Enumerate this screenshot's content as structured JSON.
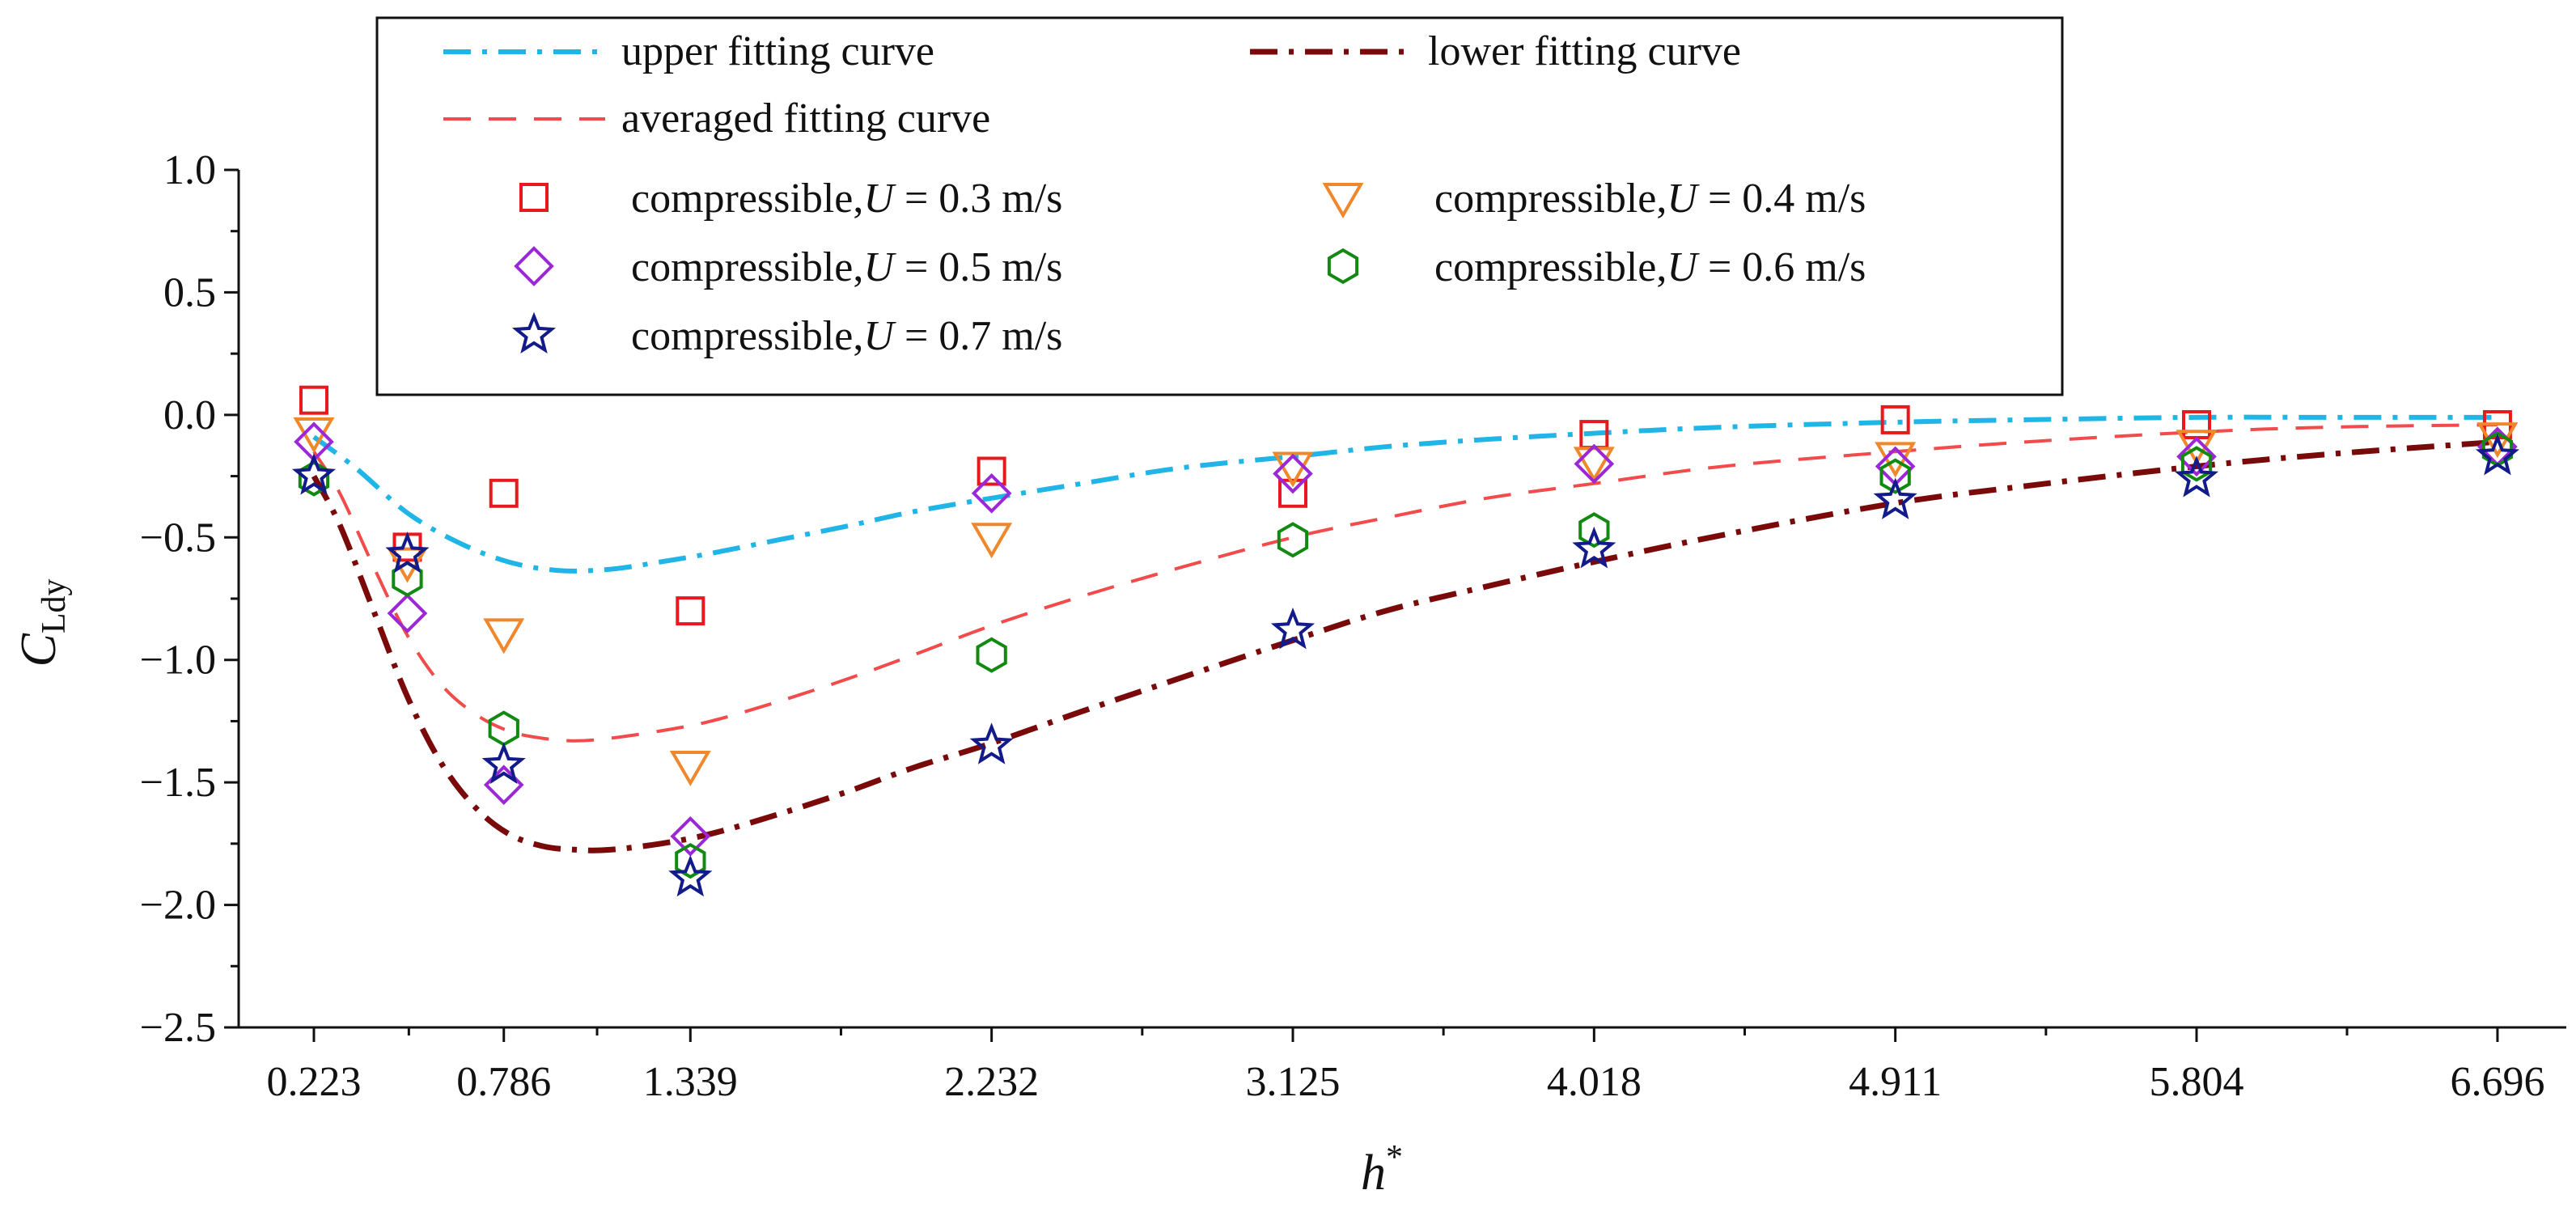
{
  "chart_data": {
    "type": "scatter",
    "title": "",
    "xlabel": "h",
    "xlabel_sup": "*",
    "ylabel": "C",
    "ylabel_sub": "Ldy",
    "xlim": [
      0,
      6.9
    ],
    "ylim": [
      -2.5,
      1.0
    ],
    "xticks": [
      0.223,
      0.786,
      1.339,
      2.232,
      3.125,
      4.018,
      4.911,
      5.804,
      6.696
    ],
    "xtick_labels": [
      "0.223",
      "0.786",
      "1.339",
      "2.232",
      "3.125",
      "4.018",
      "4.911",
      "5.804",
      "6.696"
    ],
    "yticks": [
      1.0,
      0.5,
      0.0,
      -0.5,
      -1.0,
      -1.5,
      -2.0,
      -2.5
    ],
    "ytick_labels": [
      "1.0",
      "0.5",
      "0.0",
      "−0.5",
      "−1.0",
      "−1.5",
      "−2.0",
      "−2.5"
    ],
    "grid": false,
    "legend_position": "top-center",
    "curves": [
      {
        "name": "upper fitting curve",
        "style": "dash-dot",
        "color": "#1fb5e6",
        "x": [
          0.223,
          0.35,
          0.5,
          0.65,
          0.8,
          0.95,
          1.1,
          1.25,
          1.4,
          1.6,
          1.8,
          2.0,
          2.232,
          2.5,
          2.8,
          3.125,
          3.4,
          3.7,
          4.018,
          4.4,
          4.911,
          5.3,
          5.804,
          6.2,
          6.696
        ],
        "y": [
          -0.09,
          -0.22,
          -0.4,
          -0.52,
          -0.6,
          -0.635,
          -0.63,
          -0.6,
          -0.565,
          -0.51,
          -0.455,
          -0.395,
          -0.34,
          -0.28,
          -0.215,
          -0.17,
          -0.13,
          -0.1,
          -0.075,
          -0.05,
          -0.03,
          -0.02,
          -0.01,
          -0.01,
          -0.01
        ]
      },
      {
        "name": "lower fitting curve",
        "style": "dash-dot",
        "color": "#7a0a0a",
        "x": [
          0.223,
          0.3,
          0.4,
          0.5,
          0.6,
          0.7,
          0.8,
          0.9,
          1.0,
          1.1,
          1.25,
          1.4,
          1.6,
          1.8,
          2.0,
          2.232,
          2.5,
          2.8,
          3.125,
          3.4,
          3.7,
          4.018,
          4.4,
          4.911,
          5.3,
          5.804,
          6.2,
          6.696
        ],
        "y": [
          -0.25,
          -0.45,
          -0.8,
          -1.15,
          -1.42,
          -1.6,
          -1.71,
          -1.76,
          -1.775,
          -1.775,
          -1.75,
          -1.71,
          -1.63,
          -1.54,
          -1.44,
          -1.34,
          -1.21,
          -1.07,
          -0.92,
          -0.8,
          -0.7,
          -0.6,
          -0.49,
          -0.36,
          -0.29,
          -0.21,
          -0.16,
          -0.11
        ]
      },
      {
        "name": "averaged fitting curve",
        "style": "dash",
        "color": "#f24b4b",
        "x": [
          0.223,
          0.3,
          0.4,
          0.5,
          0.6,
          0.7,
          0.8,
          0.9,
          1.0,
          1.1,
          1.25,
          1.4,
          1.6,
          1.8,
          2.0,
          2.232,
          2.5,
          2.8,
          3.125,
          3.4,
          3.7,
          4.018,
          4.4,
          4.911,
          5.3,
          5.804,
          6.2,
          6.696
        ],
        "y": [
          -0.15,
          -0.32,
          -0.62,
          -0.9,
          -1.1,
          -1.22,
          -1.29,
          -1.32,
          -1.33,
          -1.32,
          -1.29,
          -1.25,
          -1.17,
          -1.08,
          -0.98,
          -0.86,
          -0.74,
          -0.62,
          -0.5,
          -0.42,
          -0.34,
          -0.28,
          -0.21,
          -0.15,
          -0.11,
          -0.07,
          -0.05,
          -0.04
        ]
      }
    ],
    "series": [
      {
        "name": "compressible,U = 0.3 m/s",
        "label_prefix": "compressible,",
        "label_var": "U",
        "label_suffix": " = 0.3 m/s",
        "marker": "square",
        "color": "#e8191e",
        "x": [
          0.223,
          0.5,
          0.786,
          1.339,
          2.232,
          3.125,
          4.018,
          4.911,
          5.804,
          6.696
        ],
        "y": [
          0.06,
          -0.54,
          -0.32,
          -0.8,
          -0.23,
          -0.32,
          -0.08,
          -0.02,
          -0.04,
          -0.04
        ]
      },
      {
        "name": "compressible,U = 0.4 m/s",
        "label_prefix": "compressible,",
        "label_var": "U",
        "label_suffix": " = 0.4 m/s",
        "marker": "triangle-down",
        "color": "#f0872a",
        "x": [
          0.223,
          0.5,
          0.786,
          1.339,
          2.232,
          3.125,
          4.018,
          4.911,
          5.804,
          6.696
        ],
        "y": [
          -0.07,
          -0.6,
          -0.89,
          -1.43,
          -0.5,
          -0.21,
          -0.19,
          -0.17,
          -0.12,
          -0.09
        ]
      },
      {
        "name": "compressible,U = 0.5 m/s",
        "label_prefix": "compressible,",
        "label_var": "U",
        "label_suffix": " = 0.5 m/s",
        "marker": "diamond",
        "color": "#9b27d6",
        "x": [
          0.223,
          0.5,
          0.786,
          1.339,
          2.232,
          3.125,
          4.018,
          4.911,
          5.804,
          6.696
        ],
        "y": [
          -0.11,
          -0.81,
          -1.51,
          -1.72,
          -0.32,
          -0.24,
          -0.2,
          -0.21,
          -0.17,
          -0.13
        ]
      },
      {
        "name": "compressible,U = 0.6 m/s",
        "label_prefix": "compressible,",
        "label_var": "U",
        "label_suffix": " = 0.6 m/s",
        "marker": "hexagon",
        "color": "#128a12",
        "x": [
          0.223,
          0.5,
          0.786,
          1.339,
          2.232,
          3.125,
          4.018,
          4.911,
          5.804,
          6.696
        ],
        "y": [
          -0.26,
          -0.67,
          -1.28,
          -1.82,
          -0.98,
          -0.51,
          -0.47,
          -0.25,
          -0.2,
          -0.14
        ]
      },
      {
        "name": "compressible,U = 0.7 m/s",
        "label_prefix": "compressible,",
        "label_var": "U",
        "label_suffix": " = 0.7 m/s",
        "marker": "star",
        "color": "#131a8a",
        "x": [
          0.223,
          0.5,
          0.786,
          1.339,
          2.232,
          3.125,
          4.018,
          4.911,
          5.804,
          6.696
        ],
        "y": [
          -0.25,
          -0.57,
          -1.43,
          -1.89,
          -1.35,
          -0.88,
          -0.55,
          -0.35,
          -0.26,
          -0.17
        ]
      }
    ]
  }
}
